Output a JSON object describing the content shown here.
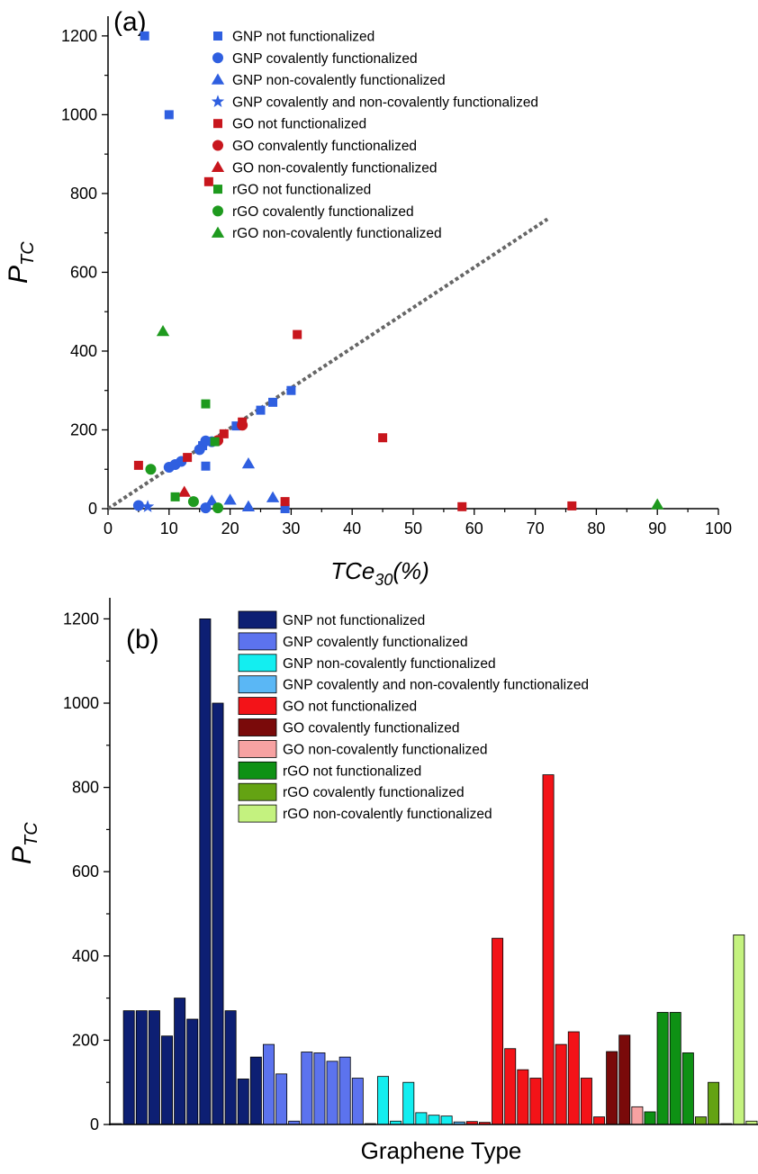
{
  "colors": {
    "gnp": "#2f5fe0",
    "go": "#c8161d",
    "rgo": "#1e9a1e",
    "trend": "#666666"
  },
  "chart_data": [
    {
      "type": "scatter",
      "panel_label": "(a)",
      "xlabel_main": "TCe",
      "xlabel_sub": "30",
      "xlabel_suffix": "(%)",
      "ylabel_main": "P",
      "ylabel_sub": "TC",
      "xlim": [
        0,
        100
      ],
      "ylim": [
        0,
        1250
      ],
      "xticks": [
        0,
        10,
        20,
        30,
        40,
        50,
        60,
        70,
        80,
        90,
        100
      ],
      "yticks": [
        0,
        200,
        400,
        600,
        800,
        1000,
        1200
      ],
      "trend_line": {
        "x": [
          0,
          72
        ],
        "y": [
          0,
          735
        ]
      },
      "legend_position": "top-right",
      "series": [
        {
          "name": "GNP not functionalized",
          "color": "#2f5fe0",
          "marker": "square",
          "points": [
            [
              6,
              1200
            ],
            [
              10,
              1000
            ],
            [
              16,
              108
            ],
            [
              25,
              250
            ],
            [
              27,
              270
            ],
            [
              30,
              300
            ],
            [
              21,
              210
            ],
            [
              29,
              0
            ],
            [
              15.5,
              160
            ]
          ]
        },
        {
          "name": "GNP covalently functionalized",
          "color": "#2f5fe0",
          "marker": "circle",
          "points": [
            [
              5,
              8
            ],
            [
              10,
              105
            ],
            [
              11,
              112
            ],
            [
              12,
              120
            ],
            [
              15,
              150
            ],
            [
              16,
              172
            ],
            [
              17,
              170
            ],
            [
              16,
              2
            ]
          ]
        },
        {
          "name": "GNP non-covalently functionalized",
          "color": "#2f5fe0",
          "marker": "triangle",
          "points": [
            [
              17,
              20
            ],
            [
              20,
              22
            ],
            [
              23,
              114
            ],
            [
              23,
              5
            ],
            [
              27,
              28
            ]
          ]
        },
        {
          "name": "GNP covalently and non-covalently functionalized",
          "color": "#2f5fe0",
          "marker": "star",
          "points": [
            [
              6.5,
              5
            ]
          ]
        },
        {
          "name": "GO not functionalized",
          "color": "#c8161d",
          "marker": "square",
          "points": [
            [
              5,
              110
            ],
            [
              16.5,
              830
            ],
            [
              31,
              442
            ],
            [
              45,
              180
            ],
            [
              13,
              130
            ],
            [
              19,
              190
            ],
            [
              22,
              220
            ],
            [
              29,
              18
            ],
            [
              58,
              5
            ],
            [
              76,
              7
            ]
          ]
        },
        {
          "name": "GO convalently functionalized",
          "color": "#c8161d",
          "marker": "circle",
          "points": [
            [
              18,
              173
            ],
            [
              22,
              212
            ]
          ]
        },
        {
          "name": "GO non-covalently functionalized",
          "color": "#c8161d",
          "marker": "triangle",
          "points": [
            [
              12.5,
              42
            ]
          ]
        },
        {
          "name": "rGO not functionalized",
          "color": "#1e9a1e",
          "marker": "square",
          "points": [
            [
              16,
              266
            ],
            [
              11,
              30
            ],
            [
              17.5,
              170
            ]
          ]
        },
        {
          "name": "rGO covalently functionalized",
          "color": "#1e9a1e",
          "marker": "circle",
          "points": [
            [
              7,
              100
            ],
            [
              14,
              18
            ],
            [
              18,
              2
            ]
          ]
        },
        {
          "name": "rGO non-covalently functionalized",
          "color": "#1e9a1e",
          "marker": "triangle",
          "points": [
            [
              9,
              450
            ],
            [
              90,
              10
            ]
          ]
        }
      ]
    },
    {
      "type": "bar",
      "panel_label": "(b)",
      "xlabel": "Graphene Type",
      "ylabel_main": "P",
      "ylabel_sub": "TC",
      "ylim": [
        0,
        1250
      ],
      "yticks": [
        0,
        200,
        400,
        600,
        800,
        1000,
        1200
      ],
      "legend_position": "top-center",
      "series": [
        {
          "name": "GNP not functionalized",
          "color": "#0d1f73",
          "values": [
            2,
            270,
            270,
            270,
            210,
            300,
            250,
            1200,
            1000,
            270,
            108,
            160
          ]
        },
        {
          "name": "GNP covalently functionalized",
          "color": "#5c73ee",
          "values": [
            190,
            120,
            8,
            172,
            170,
            150,
            160,
            110
          ]
        },
        {
          "name": "GNP non-covalently functionalized",
          "color": "#13eef0",
          "values": [
            2,
            114,
            8,
            100,
            28,
            22,
            20
          ]
        },
        {
          "name": "GNP covalently and non-covalently functionalized",
          "color": "#5ab7f5",
          "values": [
            6
          ]
        },
        {
          "name": "GO not functionalized",
          "color": "#f31318",
          "values": [
            7,
            5,
            442,
            180,
            130,
            110,
            830,
            190,
            220,
            110,
            18
          ]
        },
        {
          "name": "GO covalently functionalized",
          "color": "#7a0a0a",
          "values": [
            173,
            212
          ]
        },
        {
          "name": "GO non-covalently functionalized",
          "color": "#f7a2a2",
          "values": [
            42
          ]
        },
        {
          "name": "rGO not functionalized",
          "color": "#0e9114",
          "values": [
            30,
            266,
            266,
            170
          ]
        },
        {
          "name": "rGO covalently functionalized",
          "color": "#64a313",
          "values": [
            18,
            100
          ]
        },
        {
          "name": "rGO non-covalently functionalized",
          "color": "#c4f27f",
          "values": [
            2,
            450,
            8
          ]
        }
      ]
    }
  ]
}
